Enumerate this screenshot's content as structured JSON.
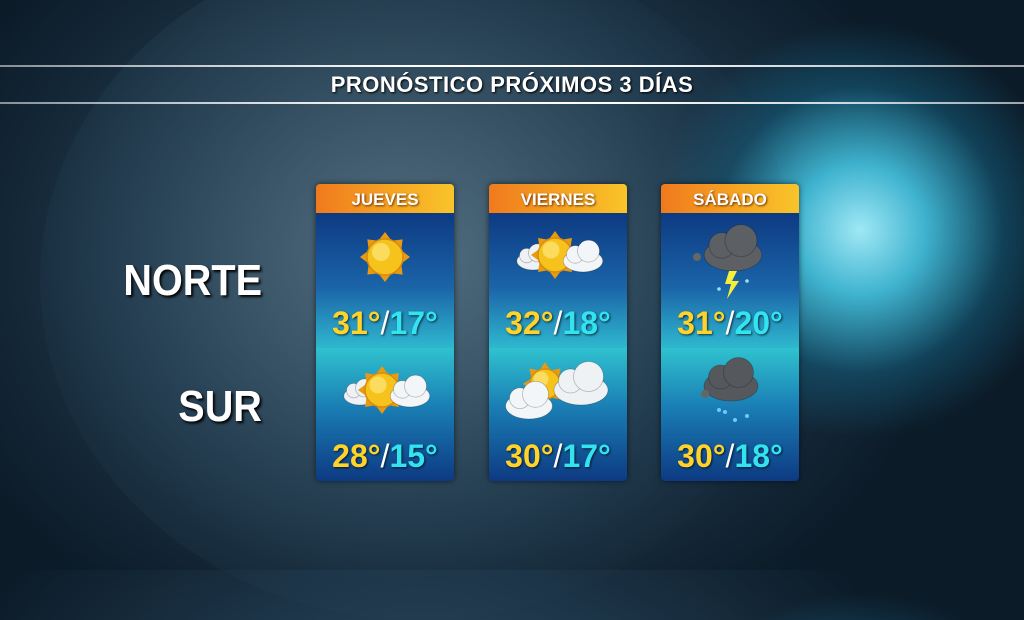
{
  "title": "PRONÓSTICO PRÓXIMOS 3 DÍAS",
  "regions": [
    "NORTE",
    "SUR"
  ],
  "colors": {
    "header_orange": "#f07a1e",
    "high_temp": "#ffd32a",
    "low_temp": "#32e3f0",
    "card_blue": "#0d3a82"
  },
  "days": [
    {
      "label": "JUEVES",
      "norte": {
        "icon": "sunny-icon",
        "high": "31°",
        "low": "17°"
      },
      "sur": {
        "icon": "partly-cloudy-icon",
        "high": "28°",
        "low": "15°"
      }
    },
    {
      "label": "VIERNES",
      "norte": {
        "icon": "partly-cloudy-icon",
        "high": "32°",
        "low": "18°"
      },
      "sur": {
        "icon": "mostly-cloudy-icon",
        "high": "30°",
        "low": "17°"
      }
    },
    {
      "label": "SÁBADO",
      "norte": {
        "icon": "thunderstorm-icon",
        "high": "31°",
        "low": "20°"
      },
      "sur": {
        "icon": "rain-icon",
        "high": "30°",
        "low": "18°"
      }
    }
  ],
  "separator": "/"
}
